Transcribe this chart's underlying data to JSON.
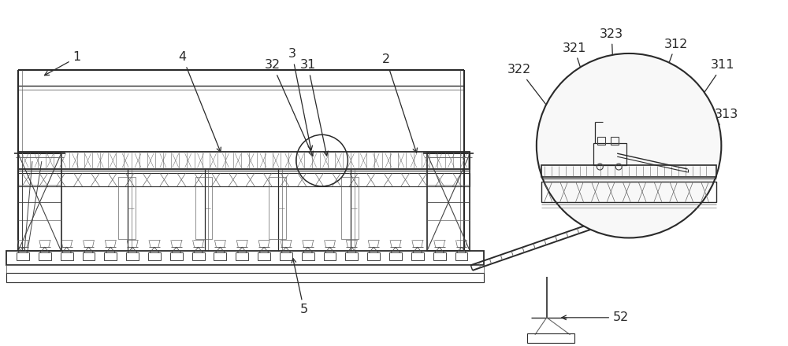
{
  "bg_color": "#ffffff",
  "lc": "#2a2a2a",
  "lc2": "#444444",
  "lc3": "#666666",
  "fig_width": 10.0,
  "fig_height": 4.4,
  "dpi": 100
}
